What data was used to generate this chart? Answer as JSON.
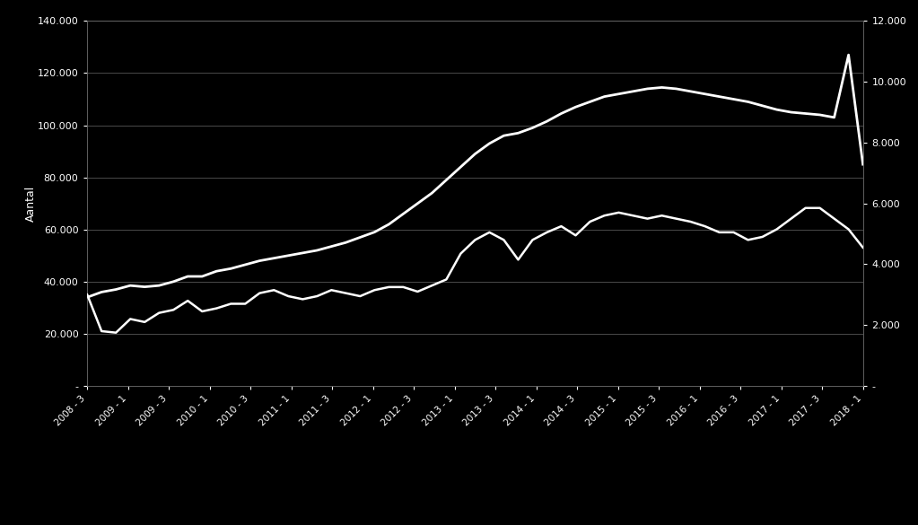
{
  "background_color": "#000000",
  "plot_bg_color": "#000000",
  "line_color": "#ffffff",
  "grid_color": "#666666",
  "text_color": "#ffffff",
  "ylabel_left": "Aantal",
  "ylim_left": [
    0,
    140000
  ],
  "ylim_right": [
    0,
    12000
  ],
  "yticks_left": [
    0,
    20000,
    40000,
    60000,
    80000,
    100000,
    120000,
    140000
  ],
  "yticks_right": [
    0,
    2000,
    4000,
    6000,
    8000,
    10000,
    12000
  ],
  "xtick_labels": [
    "2008 - 3",
    "2009 - 1",
    "2009 - 3",
    "2010 - 1",
    "2010 - 3",
    "2011 - 1",
    "2011 - 3",
    "2012 - 1",
    "2012 - 3",
    "2013 - 1",
    "2013 - 3",
    "2014 - 1",
    "2014 - 3",
    "2015 - 1",
    "2015 - 3",
    "2016 - 1",
    "2016 - 3",
    "2017 - 1",
    "2017 - 3",
    "2018 - 1"
  ],
  "series_right": [
    3000,
    1800,
    1750,
    2200,
    2100,
    2400,
    2500,
    2800,
    2450,
    2550,
    2700,
    2700,
    3050,
    3150,
    2950,
    2850,
    2950,
    3150,
    3050,
    2950,
    3150,
    3250,
    3250,
    3100,
    3300,
    3500,
    4350,
    4800,
    5050,
    4800,
    4150,
    4800,
    5050,
    5250,
    4950,
    5400,
    5600,
    5700,
    5600,
    5500,
    5600,
    5500,
    5400,
    5250,
    5050,
    5050,
    4800,
    4900,
    5150,
    5500,
    5850,
    5850,
    5500,
    5150,
    4550
  ],
  "series_left": [
    34000,
    36000,
    37000,
    38500,
    38000,
    38500,
    40000,
    42000,
    42000,
    44000,
    45000,
    46500,
    48000,
    49000,
    50000,
    51000,
    52000,
    53500,
    55000,
    57000,
    59000,
    62000,
    66000,
    70000,
    74000,
    79000,
    84000,
    89000,
    93000,
    96000,
    97000,
    99000,
    101500,
    104500,
    107000,
    109000,
    111000,
    112000,
    113000,
    114000,
    114500,
    114000,
    113000,
    112000,
    111000,
    110000,
    109000,
    107500,
    106000,
    105000,
    104500,
    104000,
    103000,
    127000,
    85000
  ],
  "footer_color": "#d8d8d8",
  "fig_width": 10.23,
  "fig_height": 5.85,
  "dpi": 100
}
